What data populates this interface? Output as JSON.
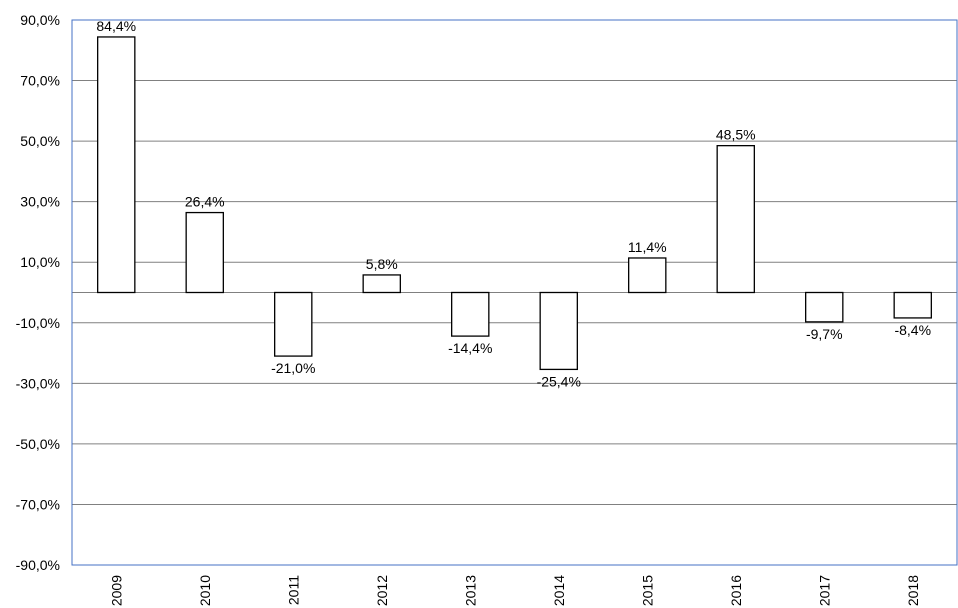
{
  "chart_data": {
    "type": "bar",
    "title": "",
    "xlabel": "",
    "ylabel": "",
    "categories": [
      "2009",
      "2010",
      "2011",
      "2012",
      "2013",
      "2014",
      "2015",
      "2016",
      "2017",
      "2018"
    ],
    "values": [
      84.4,
      26.4,
      -21.0,
      5.8,
      -14.4,
      -25.4,
      11.4,
      48.5,
      -9.7,
      -8.4
    ],
    "data_labels": [
      "84,4%",
      "26,4%",
      "-21,0%",
      "5,8%",
      "-14,4%",
      "-25,4%",
      "11,4%",
      "48,5%",
      "-9,7%",
      "-8,4%"
    ],
    "ylim": [
      -90,
      90
    ],
    "yticks": [
      90,
      70,
      50,
      30,
      10,
      -10,
      -30,
      -50,
      -70,
      -90
    ],
    "ytick_labels": [
      "90,0%",
      "70,0%",
      "50,0%",
      "30,0%",
      "10,0%",
      "-10,0%",
      "-30,0%",
      "-50,0%",
      "-70,0%",
      "-90,0%"
    ],
    "grid": true,
    "legend": "none",
    "colors": {
      "bar_fill": "#ffffff",
      "bar_stroke": "#000000",
      "grid": "#808080",
      "plot_border": "#4472c4"
    }
  }
}
